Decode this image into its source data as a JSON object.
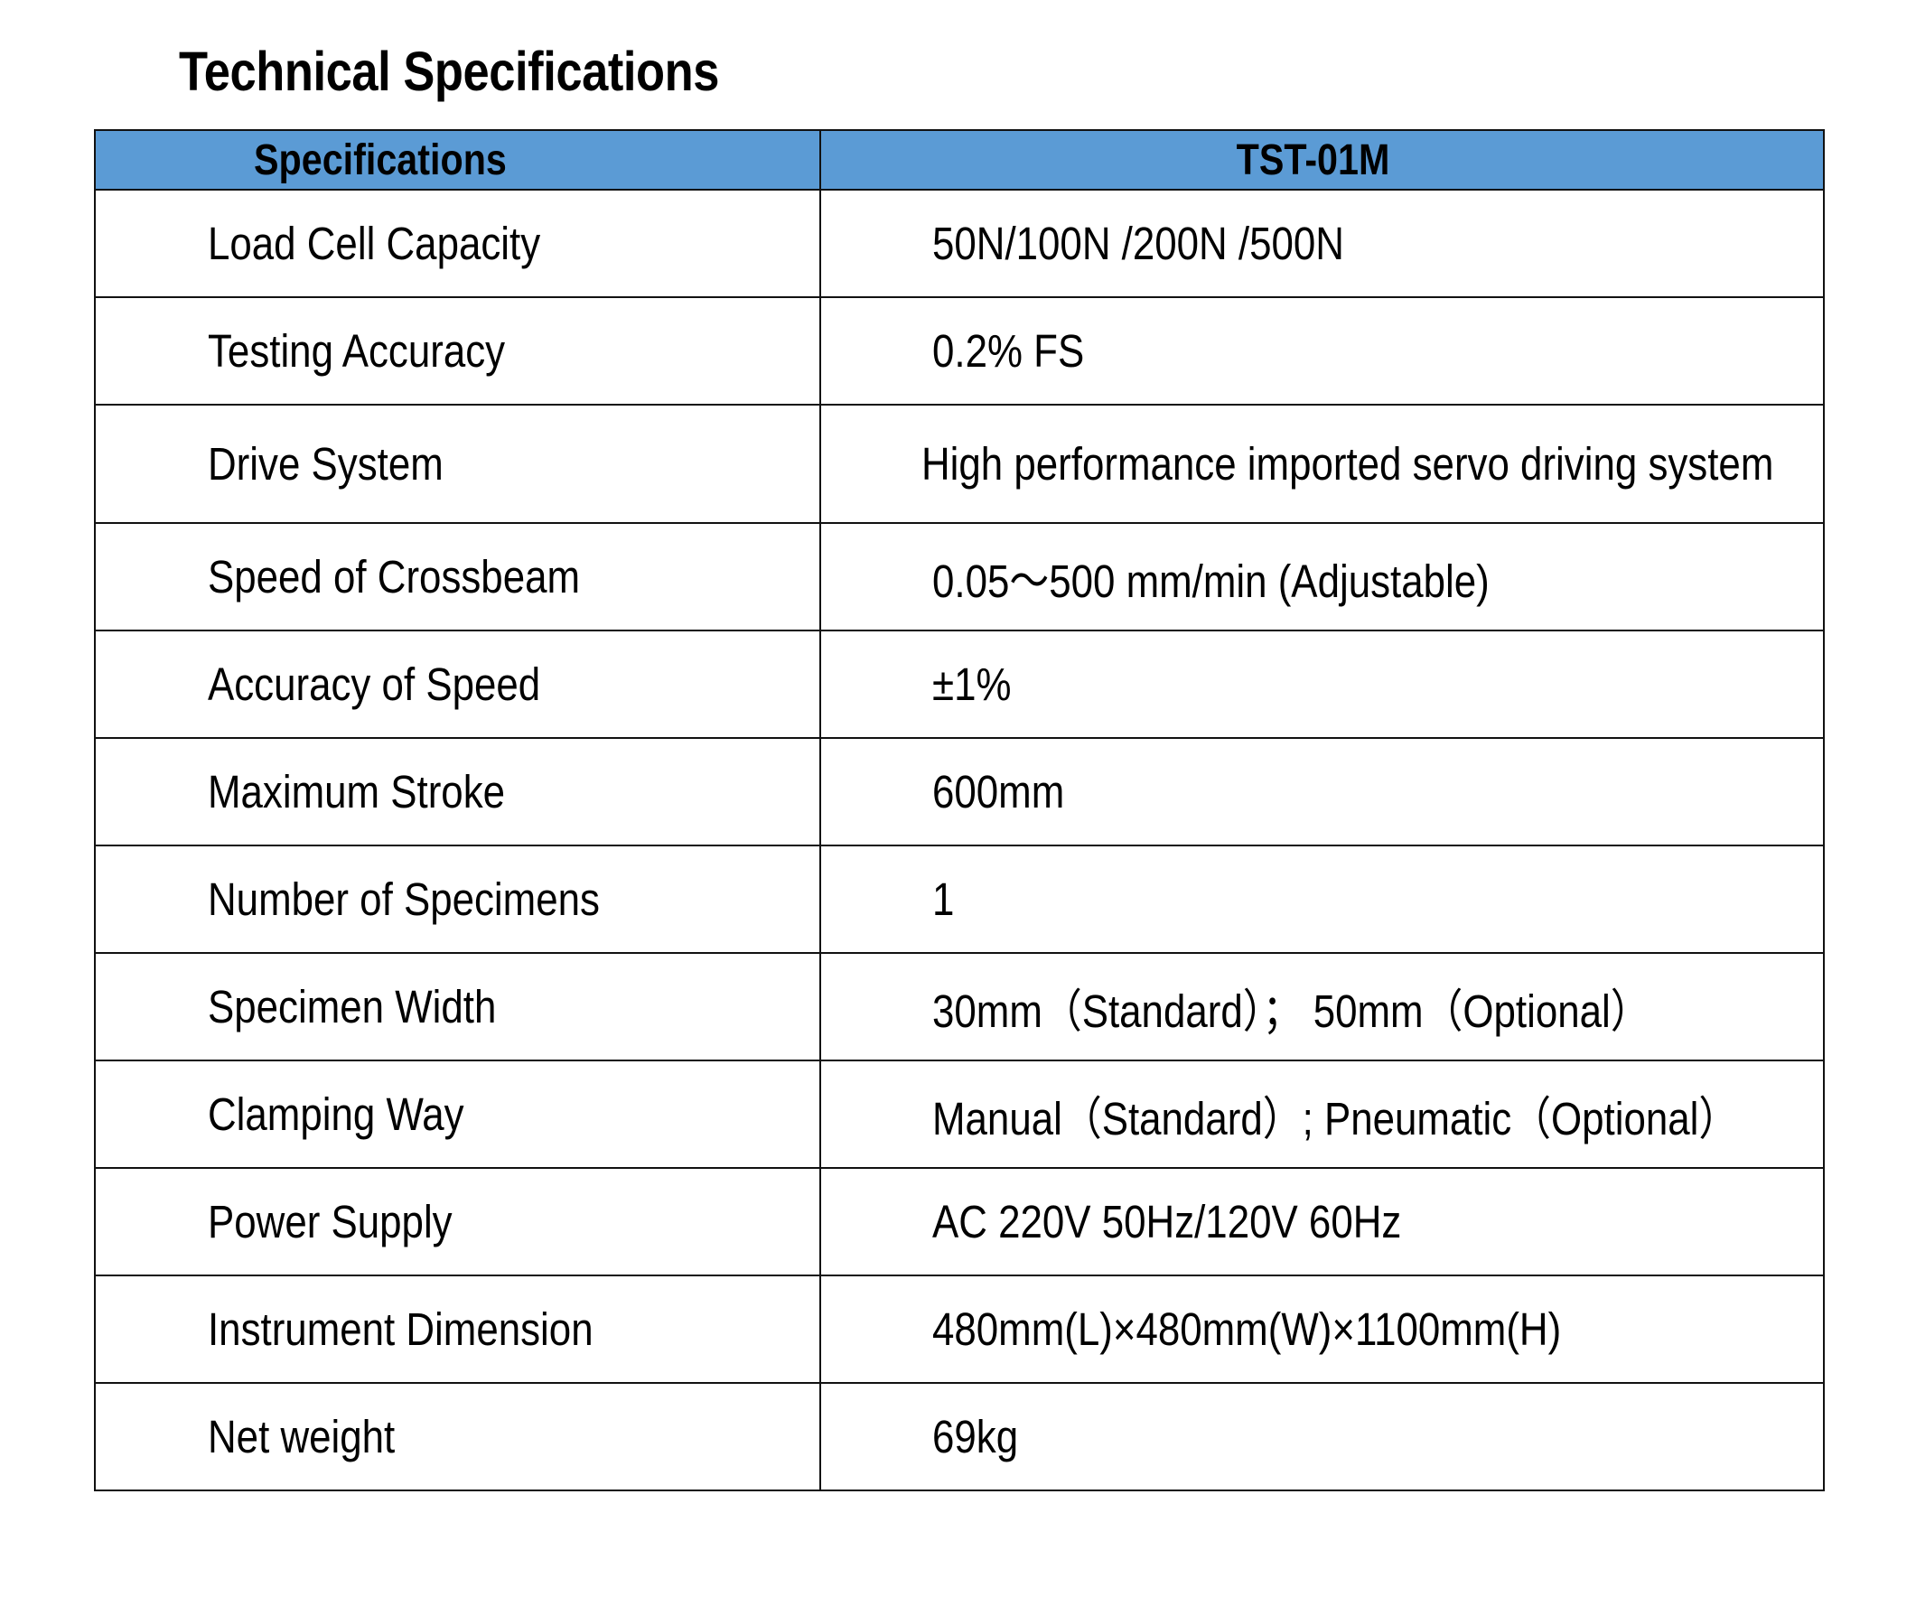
{
  "title": "Technical Specifications",
  "table": {
    "headers": [
      "Specifications",
      "TST-01M"
    ],
    "header_color": "#5b9bd5",
    "rows": [
      {
        "label": "Load Cell Capacity",
        "value": "50N/100N /200N /500N"
      },
      {
        "label": "Testing Accuracy",
        "value": "0.2% FS"
      },
      {
        "label": "Drive System",
        "value": "High performance imported servo driving system"
      },
      {
        "label": "Speed of Crossbeam",
        "value": "0.05～500 mm/min (Adjustable)"
      },
      {
        "label": "Accuracy of Speed",
        "value": "±1%"
      },
      {
        "label": "Maximum Stroke",
        "value": "600mm"
      },
      {
        "label": "Number of Specimens",
        "value": "1"
      },
      {
        "label": "Specimen Width",
        "value": "30mm（Standard）； 50mm（Optional）"
      },
      {
        "label": "Clamping Way",
        "value": "Manual（Standard）; Pneumatic（Optional）"
      },
      {
        "label": "Power Supply",
        "value": "AC 220V 50Hz/120V 60Hz"
      },
      {
        "label": "Instrument Dimension",
        "value": "480mm(L)×480mm(W)×1100mm(H)"
      },
      {
        "label": "Net weight",
        "value": "69kg"
      }
    ]
  }
}
